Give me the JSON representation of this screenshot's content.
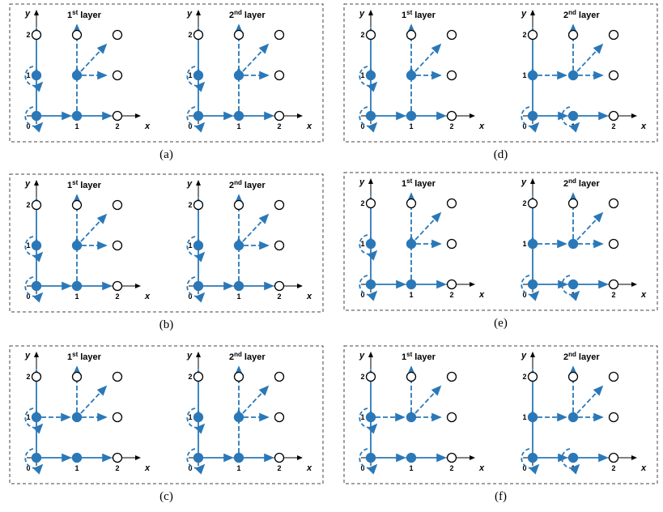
{
  "panels": [
    {
      "caption": "(a)",
      "layers": [
        {
          "num": "1",
          "sup": "st",
          "word": "layer"
        },
        {
          "num": "2",
          "sup": "nd",
          "word": "layer"
        }
      ]
    },
    {
      "caption": "(b)",
      "layers": [
        {
          "num": "1",
          "sup": "st",
          "word": "layer"
        },
        {
          "num": "2",
          "sup": "nd",
          "word": "layer"
        }
      ]
    },
    {
      "caption": "(c)",
      "layers": [
        {
          "num": "1",
          "sup": "st",
          "word": "layer"
        },
        {
          "num": "2",
          "sup": "nd",
          "word": "layer"
        }
      ]
    },
    {
      "caption": "(d)",
      "layers": [
        {
          "num": "1",
          "sup": "st",
          "word": "layer"
        },
        {
          "num": "2",
          "sup": "nd",
          "word": "layer"
        }
      ]
    },
    {
      "caption": "(e)",
      "layers": [
        {
          "num": "1",
          "sup": "st",
          "word": "layer"
        },
        {
          "num": "2",
          "sup": "nd",
          "word": "layer"
        }
      ]
    },
    {
      "caption": "(f)",
      "layers": [
        {
          "num": "1",
          "sup": "st",
          "word": "layer"
        },
        {
          "num": "2",
          "sup": "nd",
          "word": "layer"
        }
      ]
    }
  ],
  "axis_labels": {
    "x": "x",
    "y": "y"
  },
  "x_ticks": [
    "0",
    "1",
    "2"
  ],
  "y_ticks": [
    "1",
    "2"
  ]
}
